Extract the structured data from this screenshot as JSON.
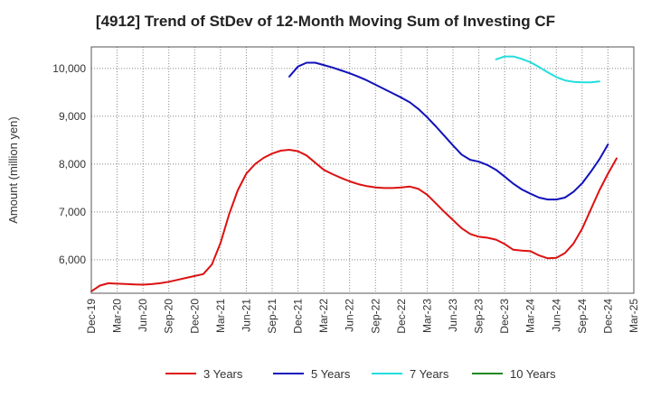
{
  "chart_data": {
    "type": "line",
    "title": "[4912]  Trend of StDev of 12-Month Moving Sum of Investing CF",
    "xlabel": "",
    "ylabel": "Amount (million yen)",
    "ylim": [
      5300,
      10450
    ],
    "yticks": [
      6000,
      7000,
      8000,
      9000,
      10000
    ],
    "ytick_labels": [
      "6,000",
      "7,000",
      "8,000",
      "9,000",
      "10,000"
    ],
    "xticks": [
      "Dec-19",
      "Mar-20",
      "Jun-20",
      "Sep-20",
      "Dec-20",
      "Mar-21",
      "Jun-21",
      "Sep-21",
      "Dec-21",
      "Mar-22",
      "Jun-22",
      "Sep-22",
      "Dec-22",
      "Mar-23",
      "Jun-23",
      "Sep-23",
      "Dec-23",
      "Mar-24",
      "Jun-24",
      "Sep-24",
      "Dec-24",
      "Mar-25"
    ],
    "grid": true,
    "legend_position": "bottom",
    "series": [
      {
        "name": "3 Years",
        "color": "#dd1111",
        "start": "Dec-19",
        "values": [
          5340,
          5460,
          5510,
          5500,
          5495,
          5485,
          5480,
          5490,
          5510,
          5540,
          5580,
          5620,
          5660,
          5700,
          5900,
          6350,
          6950,
          7450,
          7800,
          8000,
          8130,
          8220,
          8280,
          8300,
          8270,
          8180,
          8030,
          7880,
          7790,
          7710,
          7640,
          7580,
          7540,
          7510,
          7500,
          7500,
          7510,
          7530,
          7480,
          7360,
          7180,
          7000,
          6830,
          6660,
          6540,
          6480,
          6460,
          6420,
          6330,
          6210,
          6190,
          6180,
          6090,
          6030,
          6040,
          6140,
          6340,
          6650,
          7050,
          7450,
          7800,
          8120
        ]
      },
      {
        "name": "5 Years",
        "color": "#1111bb",
        "start": "Nov-21",
        "values": [
          9830,
          10040,
          10120,
          10120,
          10070,
          10020,
          9960,
          9900,
          9830,
          9750,
          9660,
          9570,
          9480,
          9390,
          9290,
          9150,
          8980,
          8790,
          8590,
          8390,
          8200,
          8090,
          8050,
          7980,
          7880,
          7740,
          7590,
          7470,
          7380,
          7300,
          7260,
          7260,
          7300,
          7420,
          7600,
          7840,
          8100,
          8410
        ]
      },
      {
        "name": "7 Years",
        "color": "#22dddd",
        "start": "Nov-23",
        "values": [
          10190,
          10250,
          10250,
          10200,
          10130,
          10030,
          9920,
          9820,
          9750,
          9720,
          9710,
          9710,
          9730
        ]
      },
      {
        "name": "10 Years",
        "color": "#228822",
        "start": "",
        "values": []
      }
    ]
  }
}
